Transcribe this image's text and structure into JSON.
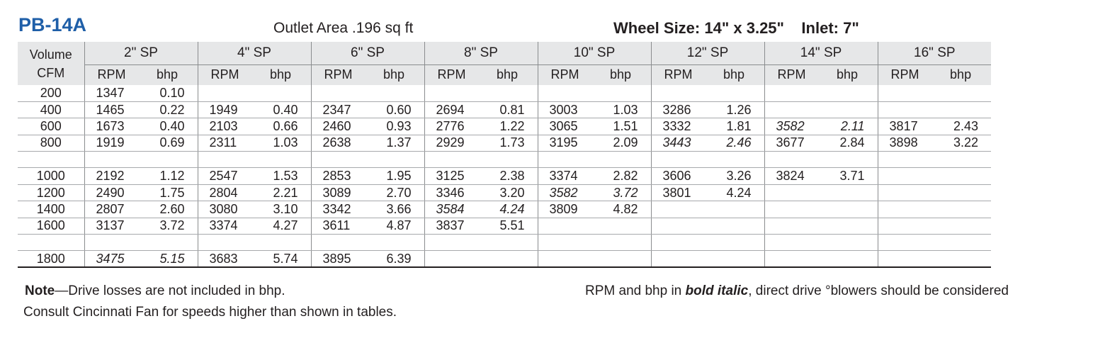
{
  "header": {
    "model": "PB-14A",
    "outlet_area": "Outlet Area .196 sq ft",
    "wheel_size": "Wheel Size: 14\" x 3.25\"    Inlet: 7\""
  },
  "table": {
    "volume_label_1": "Volume",
    "volume_label_2": "CFM",
    "sp_columns": [
      "2\" SP",
      "4\" SP",
      "6\" SP",
      "8\" SP",
      "10\" SP",
      "12\" SP",
      "14\" SP",
      "16\" SP"
    ],
    "rpm_label": "RPM",
    "bhp_label": "bhp",
    "rows": [
      {
        "cfm": "200",
        "cells": [
          [
            "1347",
            "0.10",
            false
          ],
          [
            "",
            "",
            false
          ],
          [
            "",
            "",
            false
          ],
          [
            "",
            "",
            false
          ],
          [
            "",
            "",
            false
          ],
          [
            "",
            "",
            false
          ],
          [
            "",
            "",
            false
          ],
          [
            "",
            "",
            false
          ]
        ]
      },
      {
        "cfm": "400",
        "cells": [
          [
            "1465",
            "0.22",
            false
          ],
          [
            "1949",
            "0.40",
            false
          ],
          [
            "2347",
            "0.60",
            false
          ],
          [
            "2694",
            "0.81",
            false
          ],
          [
            "3003",
            "1.03",
            false
          ],
          [
            "3286",
            "1.26",
            false
          ],
          [
            "",
            "",
            false
          ],
          [
            "",
            "",
            false
          ]
        ]
      },
      {
        "cfm": "600",
        "cells": [
          [
            "1673",
            "0.40",
            false
          ],
          [
            "2103",
            "0.66",
            false
          ],
          [
            "2460",
            "0.93",
            false
          ],
          [
            "2776",
            "1.22",
            false
          ],
          [
            "3065",
            "1.51",
            false
          ],
          [
            "3332",
            "1.81",
            false
          ],
          [
            "3582",
            "2.11",
            true
          ],
          [
            "3817",
            "2.43",
            false
          ]
        ]
      },
      {
        "cfm": "800",
        "cells": [
          [
            "1919",
            "0.69",
            false
          ],
          [
            "2311",
            "1.03",
            false
          ],
          [
            "2638",
            "1.37",
            false
          ],
          [
            "2929",
            "1.73",
            false
          ],
          [
            "3195",
            "2.09",
            false
          ],
          [
            "3443",
            "2.46",
            true
          ],
          [
            "3677",
            "2.84",
            false
          ],
          [
            "3898",
            "3.22",
            false
          ]
        ]
      },
      {
        "cfm": "",
        "cells": [
          [
            "",
            "",
            false
          ],
          [
            "",
            "",
            false
          ],
          [
            "",
            "",
            false
          ],
          [
            "",
            "",
            false
          ],
          [
            "",
            "",
            false
          ],
          [
            "",
            "",
            false
          ],
          [
            "",
            "",
            false
          ],
          [
            "",
            "",
            false
          ]
        ]
      },
      {
        "cfm": "1000",
        "cells": [
          [
            "2192",
            "1.12",
            false
          ],
          [
            "2547",
            "1.53",
            false
          ],
          [
            "2853",
            "1.95",
            false
          ],
          [
            "3125",
            "2.38",
            false
          ],
          [
            "3374",
            "2.82",
            false
          ],
          [
            "3606",
            "3.26",
            false
          ],
          [
            "3824",
            "3.71",
            false
          ],
          [
            "",
            "",
            false
          ]
        ]
      },
      {
        "cfm": "1200",
        "cells": [
          [
            "2490",
            "1.75",
            false
          ],
          [
            "2804",
            "2.21",
            false
          ],
          [
            "3089",
            "2.70",
            false
          ],
          [
            "3346",
            "3.20",
            false
          ],
          [
            "3582",
            "3.72",
            true
          ],
          [
            "3801",
            "4.24",
            false
          ],
          [
            "",
            "",
            false
          ],
          [
            "",
            "",
            false
          ]
        ]
      },
      {
        "cfm": "1400",
        "cells": [
          [
            "2807",
            "2.60",
            false
          ],
          [
            "3080",
            "3.10",
            false
          ],
          [
            "3342",
            "3.66",
            false
          ],
          [
            "3584",
            "4.24",
            true
          ],
          [
            "3809",
            "4.82",
            false
          ],
          [
            "",
            "",
            false
          ],
          [
            "",
            "",
            false
          ],
          [
            "",
            "",
            false
          ]
        ]
      },
      {
        "cfm": "1600",
        "cells": [
          [
            "3137",
            "3.72",
            false
          ],
          [
            "3374",
            "4.27",
            false
          ],
          [
            "3611",
            "4.87",
            false
          ],
          [
            "3837",
            "5.51",
            false
          ],
          [
            "",
            "",
            false
          ],
          [
            "",
            "",
            false
          ],
          [
            "",
            "",
            false
          ],
          [
            "",
            "",
            false
          ]
        ]
      },
      {
        "cfm": "",
        "cells": [
          [
            "",
            "",
            false
          ],
          [
            "",
            "",
            false
          ],
          [
            "",
            "",
            false
          ],
          [
            "",
            "",
            false
          ],
          [
            "",
            "",
            false
          ],
          [
            "",
            "",
            false
          ],
          [
            "",
            "",
            false
          ],
          [
            "",
            "",
            false
          ]
        ]
      },
      {
        "cfm": "1800",
        "cells": [
          [
            "3475",
            "5.15",
            true
          ],
          [
            "3683",
            "5.74",
            false
          ],
          [
            "3895",
            "6.39",
            false
          ],
          [
            "",
            "",
            false
          ],
          [
            "",
            "",
            false
          ],
          [
            "",
            "",
            false
          ],
          [
            "",
            "",
            false
          ],
          [
            "",
            "",
            false
          ]
        ]
      }
    ]
  },
  "notes": {
    "note_bold": "Note",
    "note_text": "—Drive losses are not included in bhp.",
    "consult": "Consult Cincinnati Fan for speeds higher than shown in tables.",
    "legend_pre": "RPM and bhp in ",
    "legend_bold": "bold italic",
    "legend_post": ", direct drive °blowers should be considered"
  }
}
